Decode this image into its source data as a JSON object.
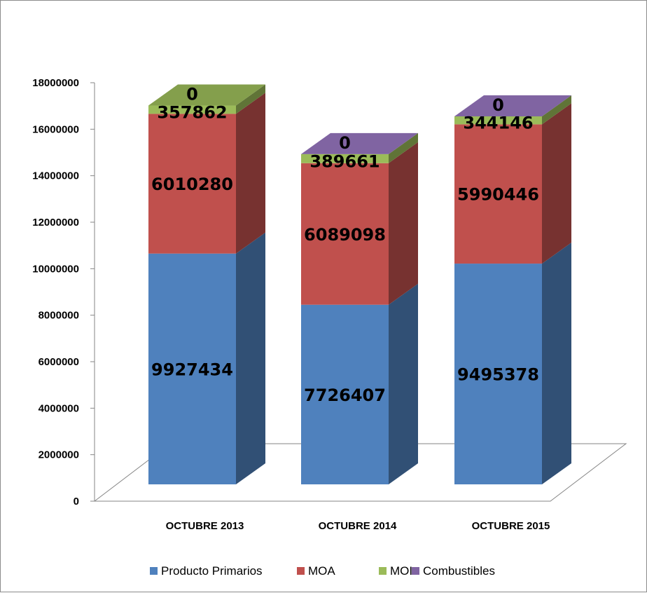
{
  "chart_data": {
    "type": "bar",
    "stacked": true,
    "three_d": true,
    "categories": [
      "OCTUBRE 2013",
      "OCTUBRE 2014",
      "OCTUBRE 2015"
    ],
    "series": [
      {
        "name": "Producto Primarios",
        "values": [
          9927434,
          7726407,
          9495378
        ],
        "color": "#4f81bd"
      },
      {
        "name": "MOA",
        "values": [
          6010280,
          6089098,
          5990446
        ],
        "color": "#c0504d"
      },
      {
        "name": "MOI",
        "values": [
          357862,
          389661,
          344146
        ],
        "color": "#9bbb59"
      },
      {
        "name": "Combustibles",
        "values": [
          0,
          0,
          0
        ],
        "color": "#8064a2"
      }
    ],
    "ylim": [
      0,
      18000000
    ],
    "yticks": [
      "0",
      "2000000",
      "4000000",
      "6000000",
      "8000000",
      "10000000",
      "12000000",
      "14000000",
      "16000000",
      "18000000"
    ],
    "grid": false,
    "legend": "bottom"
  }
}
